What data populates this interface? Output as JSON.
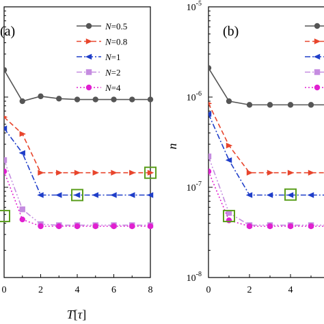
{
  "chart_data": [
    {
      "type": "line",
      "panel_label": "(a)",
      "xlabel_var": "T",
      "xlabel_unit": "τ",
      "ylabel": "",
      "xlim": [
        0,
        8
      ],
      "x_ticks": [
        0,
        2,
        4,
        6,
        8
      ],
      "x_tick_labels": [
        "0",
        "2",
        "4",
        "6",
        "8"
      ],
      "y_scale": "log",
      "ylim": [
        1e-08,
        1e-05
      ],
      "grid": false,
      "legend_position": "top-right",
      "series": [
        {
          "name": "N=0.5",
          "color": "#555555",
          "marker": "circle",
          "dash": "solid",
          "x": [
            0,
            1,
            2,
            3,
            4,
            5,
            6,
            7,
            8
          ],
          "y": [
            2e-06,
            9e-07,
            1.02e-06,
            9.6e-07,
            9.4e-07,
            9.4e-07,
            9.4e-07,
            9.4e-07,
            9.4e-07
          ]
        },
        {
          "name": "N=0.8",
          "color": "#e8452c",
          "marker": "triangle-right",
          "dash": "dashed",
          "x": [
            0,
            1,
            2,
            3,
            4,
            5,
            6,
            7,
            8
          ],
          "y": [
            6e-07,
            3.9e-07,
            1.45e-07,
            1.45e-07,
            1.45e-07,
            1.45e-07,
            1.45e-07,
            1.45e-07,
            1.45e-07
          ]
        },
        {
          "name": "N=1",
          "color": "#1f3ec9",
          "marker": "triangle-left",
          "dash": "dashdot",
          "x": [
            0,
            1,
            2,
            3,
            4,
            5,
            6,
            7,
            8
          ],
          "y": [
            4.5e-07,
            2.4e-07,
            8.2e-08,
            8.2e-08,
            8.2e-08,
            8.2e-08,
            8.2e-08,
            8.2e-08,
            8.2e-08
          ]
        },
        {
          "name": "N=2",
          "color": "#c58ce0",
          "marker": "square",
          "dash": "dashdotdot",
          "x": [
            0,
            1,
            2,
            3,
            4,
            5,
            6,
            7,
            8
          ],
          "y": [
            2e-07,
            5.7e-08,
            3.9e-08,
            3.8e-08,
            3.8e-08,
            3.8e-08,
            3.8e-08,
            3.8e-08,
            3.8e-08
          ]
        },
        {
          "name": "N=4",
          "color": "#e020d0",
          "marker": "circle",
          "dash": "dotted",
          "x": [
            0,
            1,
            2,
            3,
            4,
            5,
            6,
            7,
            8
          ],
          "y": [
            1.5e-07,
            4.4e-08,
            3.7e-08,
            3.7e-08,
            3.7e-08,
            3.7e-08,
            3.7e-08,
            3.7e-08,
            3.7e-08
          ]
        }
      ],
      "highlights": [
        {
          "x": 8,
          "y": 1.45e-07
        },
        {
          "x": 4,
          "y": 8.2e-08
        },
        {
          "x": 0,
          "y": 4.8e-08
        }
      ]
    },
    {
      "type": "line",
      "panel_label": "(b)",
      "xlabel_var": "",
      "xlabel_unit": "",
      "ylabel": "n",
      "xlim": [
        0,
        8
      ],
      "x_ticks": [
        0,
        2,
        4
      ],
      "x_tick_labels": [
        "0",
        "2",
        "4"
      ],
      "y_scale": "log",
      "ylim": [
        1e-08,
        1e-05
      ],
      "y_tick_exponents": [
        "-5",
        "-6",
        "-7",
        "-8"
      ],
      "y_tick_base": "10",
      "grid": false,
      "legend_position": "top-right",
      "series": [
        {
          "name": "",
          "color": "#555555",
          "marker": "circle",
          "dash": "solid",
          "x": [
            0,
            1,
            2,
            3,
            4,
            5,
            6
          ],
          "y": [
            2.1e-06,
            9e-07,
            8.2e-07,
            8.2e-07,
            8.2e-07,
            8.2e-07,
            8.2e-07
          ]
        },
        {
          "name": "",
          "color": "#e8452c",
          "marker": "triangle-right",
          "dash": "dashed",
          "x": [
            0,
            1,
            2,
            3,
            4,
            5,
            6
          ],
          "y": [
            8.5e-07,
            2.9e-07,
            1.45e-07,
            1.45e-07,
            1.45e-07,
            1.45e-07,
            1.45e-07
          ]
        },
        {
          "name": "",
          "color": "#1f3ec9",
          "marker": "triangle-left",
          "dash": "dashdot",
          "x": [
            0,
            1,
            2,
            3,
            4,
            5,
            6
          ],
          "y": [
            6.5e-07,
            2e-07,
            8.2e-08,
            8.2e-08,
            8.2e-08,
            8.2e-08,
            8.2e-08
          ]
        },
        {
          "name": "",
          "color": "#c58ce0",
          "marker": "square",
          "dash": "dashdotdot",
          "x": [
            0,
            1,
            2,
            3,
            4,
            5,
            6
          ],
          "y": [
            2.2e-07,
            5.2e-08,
            3.8e-08,
            3.8e-08,
            3.8e-08,
            3.8e-08,
            3.8e-08
          ]
        },
        {
          "name": "",
          "color": "#e020d0",
          "marker": "circle",
          "dash": "dotted",
          "x": [
            0,
            1,
            2,
            3,
            4,
            5,
            6
          ],
          "y": [
            1.5e-07,
            4.3e-08,
            3.7e-08,
            3.7e-08,
            3.7e-08,
            3.7e-08,
            3.7e-08
          ]
        }
      ],
      "highlights": [
        {
          "x": 4,
          "y": 8.3e-08
        },
        {
          "x": 1,
          "y": 4.8e-08
        }
      ]
    }
  ]
}
